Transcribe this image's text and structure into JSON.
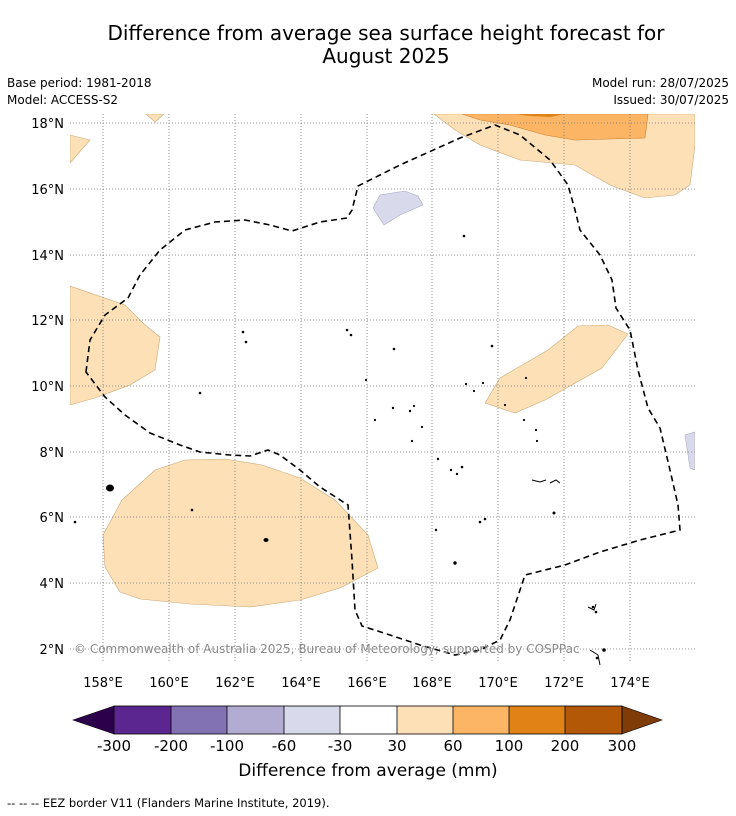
{
  "title_line1": "Difference from average sea surface height forecast for",
  "title_line2": "August 2025",
  "meta": {
    "base_period": "Base period: 1981-2018",
    "model": "Model: ACCESS-S2",
    "model_run": "Model run: 28/07/2025",
    "issued": "Issued: 30/07/2025"
  },
  "map": {
    "lon_ticks": [
      "158°E",
      "160°E",
      "162°E",
      "164°E",
      "166°E",
      "168°E",
      "170°E",
      "172°E",
      "174°E"
    ],
    "lat_ticks": [
      "18°N",
      "16°N",
      "14°N",
      "12°N",
      "10°N",
      "8°N",
      "6°N",
      "4°N",
      "2°N"
    ],
    "copyright": "© Commonwealth of Australia 2025, Bureau of Meteorology; supported by COSPPac",
    "colors": {
      "c_30_60": "#fde0b6",
      "c_60_100": "#fbb564",
      "c_100_200": "#e08215",
      "c_m60_m30": "#d8d9eb",
      "land": "#000000",
      "eez": "#000000"
    }
  },
  "colorbar": {
    "tick_labels": [
      "-300",
      "-200",
      "-100",
      "-60",
      "-30",
      "30",
      "60",
      "100",
      "200",
      "300"
    ],
    "colors": [
      "#5c2690",
      "#8272b3",
      "#b2abd2",
      "#d8d9eb",
      "#ffffff",
      "#fde0b6",
      "#fbb564",
      "#e08215",
      "#b35806"
    ],
    "extend_low_color": "#2d004b",
    "extend_high_color": "#7f3b08",
    "label": "Difference from average (mm)"
  },
  "footnote": "--  --  -- EEZ border V11 (Flanders Marine Institute, 2019)."
}
